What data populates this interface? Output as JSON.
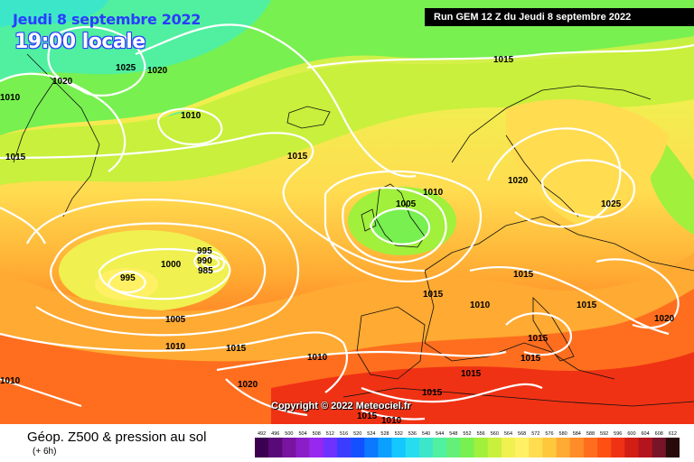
{
  "header": {
    "date": "Jeudi 8 septembre 2022",
    "time": "19:00 locale",
    "run": "Run GEM 12 Z du Jeudi 8 septembre 2022"
  },
  "copyright": "Copyright © 2022 Meteociel.fr",
  "footer": {
    "title": "Géop. Z500 & pression au sol",
    "subtitle": "(+ 6h)"
  },
  "legend": {
    "values": [
      "492",
      "496",
      "500",
      "504",
      "508",
      "512",
      "516",
      "520",
      "524",
      "528",
      "532",
      "536",
      "540",
      "544",
      "548",
      "552",
      "556",
      "560",
      "564",
      "568",
      "572",
      "576",
      "580",
      "584",
      "588",
      "592",
      "596",
      "600",
      "604",
      "608",
      "612"
    ],
    "colors": [
      "#3c0050",
      "#5a0a78",
      "#7814a0",
      "#8c1ec8",
      "#9628f0",
      "#6e32ff",
      "#3c3cff",
      "#1450ff",
      "#0a78ff",
      "#0aa0ff",
      "#14c8ff",
      "#28dcf0",
      "#3ce6c8",
      "#50f0a0",
      "#64f078",
      "#78f050",
      "#a0f03c",
      "#c8f03c",
      "#f0f050",
      "#fff064",
      "#ffdc50",
      "#ffc83c",
      "#ffaa32",
      "#ff8c28",
      "#ff6e1e",
      "#ff5014",
      "#f03214",
      "#d21e14",
      "#b4141e",
      "#781428",
      "#280a0a"
    ]
  },
  "isobars": [
    {
      "label": "1025"
    },
    {
      "label": "1020"
    },
    {
      "label": "1020"
    },
    {
      "label": "1010"
    },
    {
      "label": "1010"
    },
    {
      "label": "1015"
    },
    {
      "label": "1015"
    },
    {
      "label": "1015"
    },
    {
      "label": "1005"
    },
    {
      "label": "1010"
    },
    {
      "label": "1020"
    },
    {
      "label": "1025"
    },
    {
      "label": "1000"
    },
    {
      "label": "995"
    },
    {
      "label": "995"
    },
    {
      "label": "990"
    },
    {
      "label": "985"
    },
    {
      "label": "1005"
    },
    {
      "label": "1010"
    },
    {
      "label": "1015"
    },
    {
      "label": "1015"
    },
    {
      "label": "1010"
    },
    {
      "label": "1015"
    },
    {
      "label": "1020"
    },
    {
      "label": "1015"
    },
    {
      "label": "1015"
    },
    {
      "label": "1015"
    },
    {
      "label": "1015"
    },
    {
      "label": "1010"
    },
    {
      "label": "1020"
    },
    {
      "label": "1010"
    },
    {
      "label": "1015"
    },
    {
      "label": "1015"
    },
    {
      "label": "1010"
    }
  ]
}
